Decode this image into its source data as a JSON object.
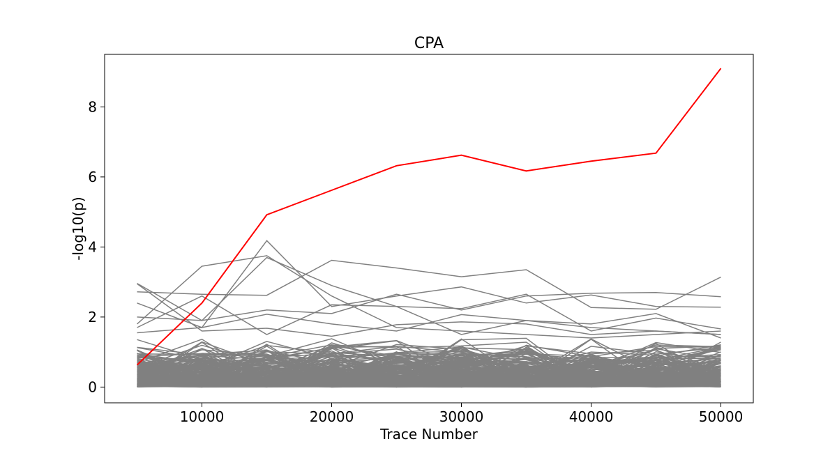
{
  "chart_data": {
    "type": "line",
    "title": "CPA",
    "xlabel": "Trace Number",
    "ylabel": "-log10(p)",
    "x": [
      5000,
      10000,
      15000,
      20000,
      25000,
      30000,
      35000,
      40000,
      45000,
      50000
    ],
    "xlim": [
      2500,
      52500
    ],
    "ylim": [
      -0.45,
      9.5
    ],
    "xticks": [
      10000,
      20000,
      30000,
      40000,
      50000
    ],
    "yticks": [
      0,
      2,
      4,
      6,
      8
    ],
    "grid": false,
    "legend": "none",
    "highlight_series": {
      "color": "#ff0000",
      "values": [
        0.63,
        2.4,
        4.92,
        5.62,
        6.32,
        6.62,
        6.17,
        6.45,
        6.68,
        9.1
      ]
    },
    "background_series": {
      "color": "#808080",
      "count": 255,
      "shown_values": [
        [
          2.96,
          1.9,
          3.7,
          2.9,
          2.3,
          1.5,
          1.9,
          1.7,
          1.6,
          1.5
        ],
        [
          1.8,
          3.45,
          3.75,
          2.6,
          1.7,
          1.6,
          1.5,
          1.4,
          1.5,
          1.6
        ],
        [
          2.72,
          2.65,
          2.62,
          3.62,
          3.4,
          3.15,
          3.35,
          2.27,
          2.22,
          3.14
        ],
        [
          2.4,
          1.7,
          4.18,
          2.3,
          2.6,
          2.86,
          2.4,
          2.63,
          2.3,
          2.28
        ],
        [
          2.0,
          1.9,
          2.2,
          2.1,
          2.65,
          2.2,
          2.6,
          2.68,
          2.7,
          2.58
        ],
        [
          1.7,
          2.6,
          1.5,
          2.35,
          2.3,
          2.24,
          2.65,
          1.6,
          1.97,
          1.66
        ],
        [
          1.55,
          1.7,
          2.08,
          1.8,
          1.6,
          2.07,
          1.9,
          1.8,
          2.1,
          1.4
        ],
        [
          2.95,
          1.6,
          1.68,
          1.45,
          1.78,
          1.86,
          1.8,
          1.5,
          1.6,
          1.5
        ]
      ]
    }
  }
}
